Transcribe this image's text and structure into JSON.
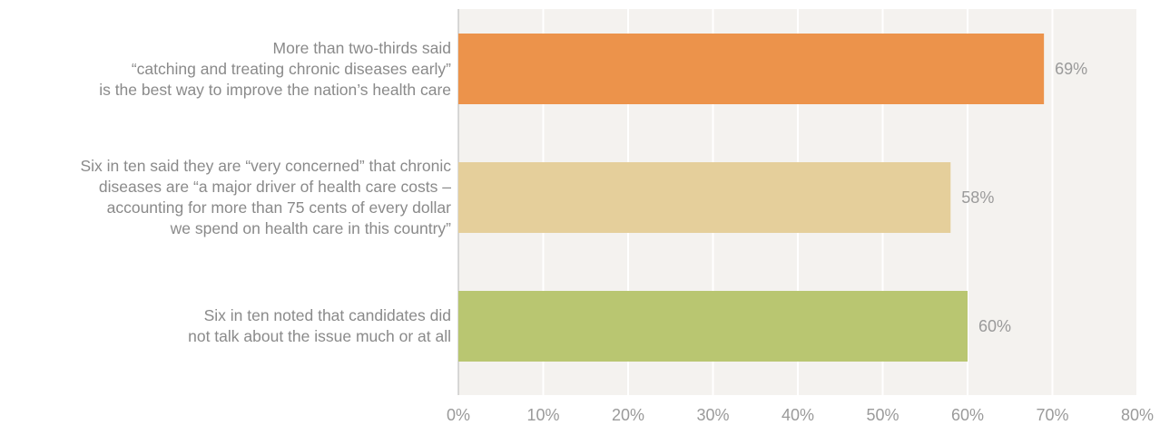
{
  "chart_data": {
    "type": "bar",
    "orientation": "horizontal",
    "categories": [
      "More than two-thirds said\n“catching and treating chronic diseases early”\nis the best way to improve the nation’s health care",
      "Six in ten said they are “very concerned” that chronic\ndiseases are “a major driver of health care costs –\naccounting for more than 75 cents of every dollar\nwe spend on health care in this country”",
      "Six in ten noted that candidates did\nnot talk about the issue much or at all"
    ],
    "values": [
      69,
      58,
      60
    ],
    "value_labels": [
      "69%",
      "58%",
      "60%"
    ],
    "colors": [
      "#EC934B",
      "#E5CF9B",
      "#B9C671"
    ],
    "xlim": [
      0,
      80
    ],
    "xticks": [
      0,
      10,
      20,
      30,
      40,
      50,
      60,
      70,
      80
    ],
    "xtick_labels": [
      "0%",
      "10%",
      "20%",
      "30%",
      "40%",
      "50%",
      "60%",
      "70%",
      "80%"
    ],
    "grid": true,
    "title": "",
    "xlabel": "",
    "ylabel": ""
  }
}
